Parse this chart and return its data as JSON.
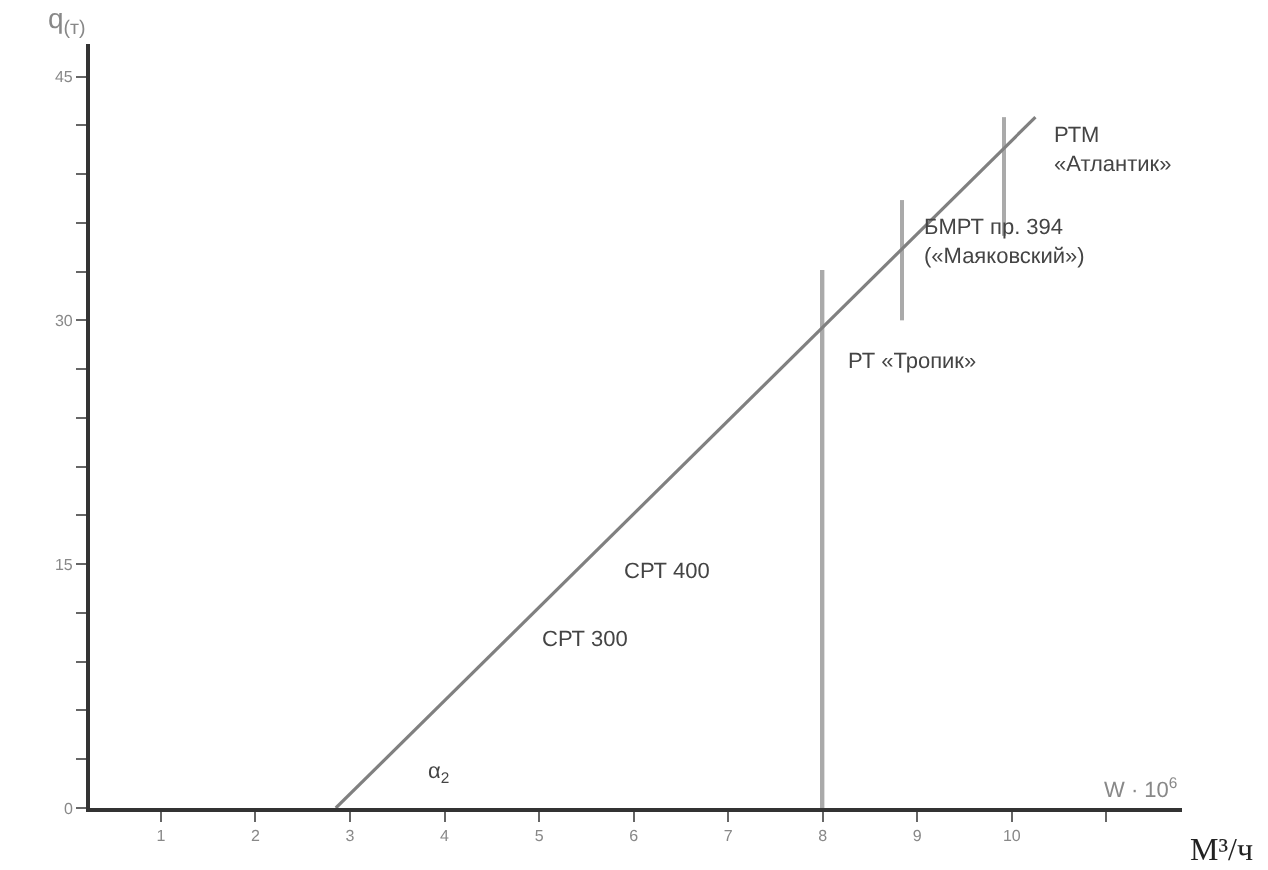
{
  "chart_data": {
    "type": "line",
    "xlabel": "W · 10$^{6}$",
    "ylabel": "q$_{(т)}$",
    "xlim": [
      0.25,
      11.8
    ],
    "ylim": [
      0,
      47
    ],
    "xticks": [
      1,
      2,
      3,
      4,
      5,
      6,
      7,
      8,
      9,
      10,
      {
        "value": 11,
        "label": null
      }
    ],
    "yticks": [
      0,
      {
        "value": 3,
        "label": null
      },
      {
        "value": 6,
        "label": null
      },
      {
        "value": 9,
        "label": null
      },
      {
        "value": 12,
        "label": null
      },
      15,
      {
        "value": 18,
        "label": null
      },
      {
        "value": 21,
        "label": null
      },
      {
        "value": 24,
        "label": null
      },
      {
        "value": 27,
        "label": null
      },
      30,
      {
        "value": 33,
        "label": null
      },
      {
        "value": 36,
        "label": null
      },
      {
        "value": 39,
        "label": null
      },
      {
        "value": 42,
        "label": null
      },
      45
    ],
    "marker": "none",
    "line_style": "solid",
    "series": [
      {
        "color": "#808080",
        "x": [
          2.85,
          10.25
        ],
        "values": [
          0,
          42.5
        ]
      },
      {
        "type": "bar",
        "color": "#aaaaaa",
        "x": [
          8,
          8.84,
          9.92
        ],
        "base": [
          0,
          30.0,
          35.2
        ],
        "values": [
          33.1,
          7.4,
          7.3
        ]
      }
    ],
    "annotations": [
      "РТМ\n«Атлантик»",
      "БМРТ пр. 394\n(«Маяковский»)",
      "РТ «Тропик»",
      "СРТ 400",
      "СРТ 300",
      "α$_{2}$",
      "М³/ч"
    ]
  }
}
